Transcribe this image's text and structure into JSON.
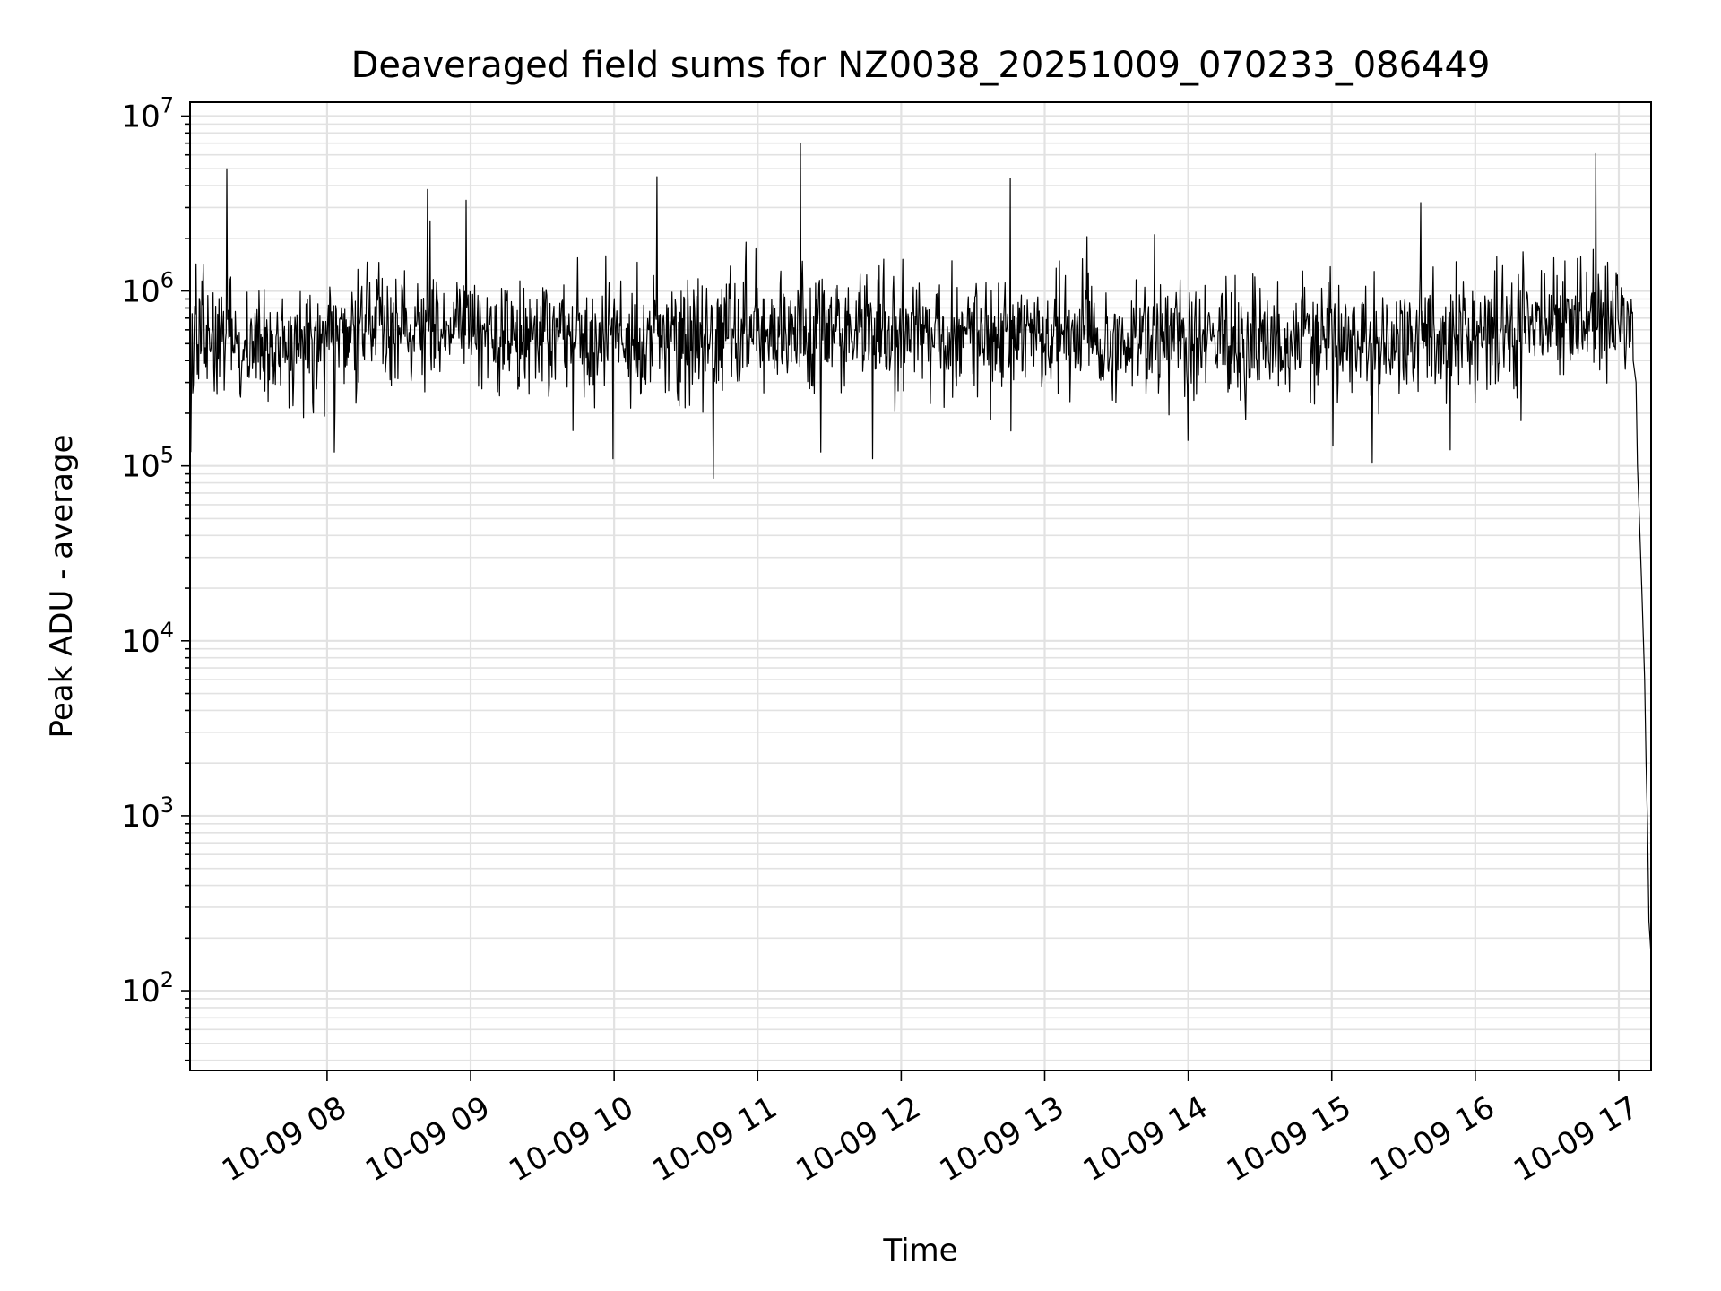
{
  "chart_data": {
    "type": "line",
    "title": "Deaveraged field sums for NZ0038_20251009_070233_086449",
    "xlabel": "Time",
    "ylabel": "Peak ADU - average",
    "yscale": "log",
    "grid": true,
    "colors": {
      "line": "#000000",
      "grid": "#e2e2e2",
      "axes": "#000000",
      "background": "#ffffff"
    },
    "x_range_hours": [
      7.045,
      17.225
    ],
    "ylim": [
      35,
      12000000
    ],
    "x_ticks": [
      {
        "label": "10-09 08",
        "hour": 8
      },
      {
        "label": "10-09 09",
        "hour": 9
      },
      {
        "label": "10-09 10",
        "hour": 10
      },
      {
        "label": "10-09 11",
        "hour": 11
      },
      {
        "label": "10-09 12",
        "hour": 12
      },
      {
        "label": "10-09 13",
        "hour": 13
      },
      {
        "label": "10-09 14",
        "hour": 14
      },
      {
        "label": "10-09 15",
        "hour": 15
      },
      {
        "label": "10-09 16",
        "hour": 16
      },
      {
        "label": "10-09 17",
        "hour": 17
      }
    ],
    "y_ticks": [
      {
        "base": "10",
        "exp": "2",
        "value": 100
      },
      {
        "base": "10",
        "exp": "3",
        "value": 1000
      },
      {
        "base": "10",
        "exp": "4",
        "value": 10000
      },
      {
        "base": "10",
        "exp": "5",
        "value": 100000
      },
      {
        "base": "10",
        "exp": "6",
        "value": 1000000
      },
      {
        "base": "10",
        "exp": "7",
        "value": 10000000
      }
    ],
    "series": [
      {
        "name": "Deaveraged field sum",
        "baseline_profile": [
          {
            "hour": 7.05,
            "value": 550000
          },
          {
            "hour": 7.5,
            "value": 500000
          },
          {
            "hour": 8.5,
            "value": 650000
          },
          {
            "hour": 9.5,
            "value": 550000
          },
          {
            "hour": 10.5,
            "value": 520000
          },
          {
            "hour": 11.5,
            "value": 600000
          },
          {
            "hour": 12.5,
            "value": 520000
          },
          {
            "hour": 13.5,
            "value": 560000
          },
          {
            "hour": 14.5,
            "value": 520000
          },
          {
            "hour": 15.5,
            "value": 530000
          },
          {
            "hour": 16.5,
            "value": 650000
          },
          {
            "hour": 17.0,
            "value": 800000
          },
          {
            "hour": 17.1,
            "value": 700000
          }
        ],
        "noise_sigma_decades": 0.17,
        "spikes": [
          {
            "hour": 7.3,
            "value": 5000000
          },
          {
            "hour": 8.7,
            "value": 3800000
          },
          {
            "hour": 8.97,
            "value": 3300000
          },
          {
            "hour": 10.3,
            "value": 4500000
          },
          {
            "hour": 11.3,
            "value": 7000000
          },
          {
            "hour": 12.76,
            "value": 4400000
          },
          {
            "hour": 15.62,
            "value": 3200000
          },
          {
            "hour": 16.84,
            "value": 6100000
          }
        ],
        "dips": [
          {
            "hour": 7.05,
            "value": 120000
          },
          {
            "hour": 8.05,
            "value": 120000
          },
          {
            "hour": 9.99,
            "value": 110000
          },
          {
            "hour": 10.69,
            "value": 85000
          },
          {
            "hour": 11.44,
            "value": 120000
          },
          {
            "hour": 11.8,
            "value": 110000
          },
          {
            "hour": 14.0,
            "value": 140000
          },
          {
            "hour": 15.01,
            "value": 130000
          },
          {
            "hour": 15.28,
            "value": 105000
          }
        ],
        "tail": [
          {
            "hour": 17.1,
            "value": 400000
          },
          {
            "hour": 17.12,
            "value": 300000
          },
          {
            "hour": 17.13,
            "value": 100000
          },
          {
            "hour": 17.14,
            "value": 60000
          },
          {
            "hour": 17.16,
            "value": 20000
          },
          {
            "hour": 17.17,
            "value": 11000
          },
          {
            "hour": 17.18,
            "value": 6000
          },
          {
            "hour": 17.19,
            "value": 2000
          },
          {
            "hour": 17.2,
            "value": 900
          },
          {
            "hour": 17.21,
            "value": 250
          },
          {
            "hour": 17.225,
            "value": 160
          }
        ]
      }
    ]
  }
}
